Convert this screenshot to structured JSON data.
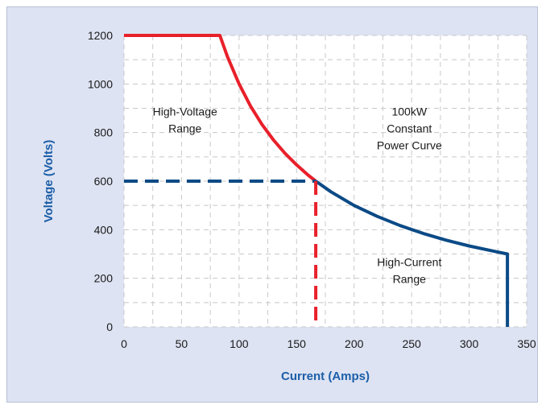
{
  "colors": {
    "frame_background": "#dde3f2",
    "plot_background": "#ffffff",
    "grid": "#c8c8c8",
    "red_series": "#e8202a",
    "blue_series": "#0b4a86",
    "axis_title": "#1c5ea8"
  },
  "chart_data": {
    "type": "line",
    "xlabel": "Current (Amps)",
    "ylabel": "Voltage (Volts)",
    "xlim": [
      0,
      350
    ],
    "ylim": [
      0,
      1200
    ],
    "x_ticks": [
      0,
      50,
      100,
      150,
      200,
      250,
      300,
      350
    ],
    "y_ticks": [
      0,
      200,
      400,
      600,
      800,
      1000,
      1200
    ],
    "grid": true,
    "grid_style": "dashed",
    "series": [
      {
        "color": "#e8202a",
        "style": "solid",
        "points": [
          [
            0,
            1200
          ],
          [
            83.3,
            1200
          ],
          [
            90,
            1111
          ],
          [
            100,
            1000
          ],
          [
            110,
            909
          ],
          [
            120,
            833
          ],
          [
            130,
            769
          ],
          [
            140,
            714
          ],
          [
            150,
            667
          ],
          [
            160,
            625
          ],
          [
            166.7,
            600
          ]
        ]
      },
      {
        "color": "#0b4a86",
        "style": "solid",
        "points": [
          [
            166.7,
            600
          ],
          [
            180,
            556
          ],
          [
            200,
            500
          ],
          [
            220,
            455
          ],
          [
            240,
            417
          ],
          [
            260,
            385
          ],
          [
            280,
            357
          ],
          [
            300,
            333
          ],
          [
            320,
            313
          ],
          [
            333.3,
            300
          ],
          [
            333.3,
            0
          ]
        ]
      },
      {
        "color": "#0b4a86",
        "style": "dashed",
        "points": [
          [
            0,
            600
          ],
          [
            166.7,
            600
          ]
        ]
      },
      {
        "color": "#e8202a",
        "style": "dashed",
        "points": [
          [
            166.7,
            600
          ],
          [
            166.7,
            0
          ]
        ]
      }
    ],
    "annotations": [
      {
        "lines": [
          "High-Voltage",
          "Range"
        ],
        "x": 53,
        "y": 870
      },
      {
        "lines": [
          "100kW",
          "Constant",
          "Power Curve"
        ],
        "x": 248,
        "y": 870
      },
      {
        "lines": [
          "High-Current",
          "Range"
        ],
        "x": 248,
        "y": 250
      }
    ]
  }
}
